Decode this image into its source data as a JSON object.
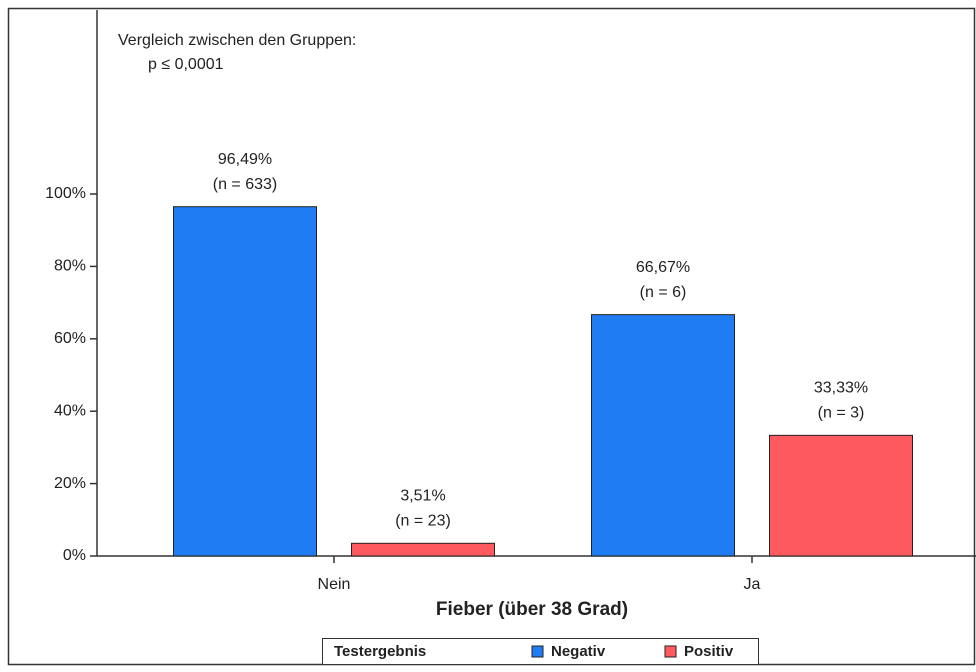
{
  "chart_data": {
    "type": "bar",
    "annotations": [
      "Vergleich zwischen den Gruppen:",
      "p ≤ 0,0001"
    ],
    "x_label": "Fieber (über 38 Grad)",
    "categories": [
      "Nein",
      "Ja"
    ],
    "legend_title": "Testergebnis",
    "series": [
      {
        "name": "Negativ",
        "color": "#1f7cf2",
        "values": [
          96.49,
          66.67
        ],
        "value_labels": [
          "96,49%",
          "66,67%"
        ],
        "count_labels": [
          "(n = 633)",
          "(n = 6)"
        ]
      },
      {
        "name": "Positiv",
        "color": "#ff5a5f",
        "values": [
          3.51,
          33.33
        ],
        "value_labels": [
          "3,51%",
          "33,33%"
        ],
        "count_labels": [
          "(n = 23)",
          "(n = 3)"
        ]
      }
    ],
    "ylim": [
      0,
      100
    ],
    "yticks": [
      {
        "value": 0,
        "label": "0%"
      },
      {
        "value": 20,
        "label": "20%"
      },
      {
        "value": 40,
        "label": "40%"
      },
      {
        "value": 60,
        "label": "60%"
      },
      {
        "value": 80,
        "label": "80%"
      },
      {
        "value": 100,
        "label": "100%"
      }
    ],
    "legend": "bottom"
  }
}
